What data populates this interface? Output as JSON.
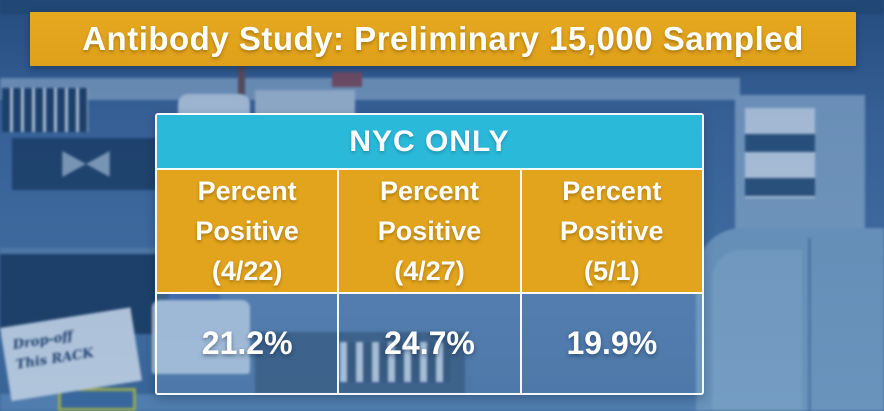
{
  "banner": {
    "title": "Antibody Study: Preliminary 15,000 Sampled"
  },
  "table": {
    "header": "NYC ONLY",
    "columns": [
      {
        "label": "Percent Positive",
        "date": "(4/22)",
        "value": "21.2%"
      },
      {
        "label": "Percent Positive",
        "date": "(4/27)",
        "value": "24.7%"
      },
      {
        "label": "Percent Positive",
        "date": "(5/1)",
        "value": "19.9%"
      }
    ]
  },
  "background": {
    "note_line1": "Drop-off",
    "note_line2": "This RACK"
  },
  "colors": {
    "gold": "#E2A41C",
    "cyan": "#2BB9DA",
    "overlay_blue": "#3A6397",
    "text": "#FFFFFF"
  },
  "chart_data": {
    "type": "table",
    "title": "Antibody Study: Preliminary 15,000 Sampled",
    "subtitle": "NYC ONLY",
    "categories": [
      "4/22",
      "4/27",
      "5/1"
    ],
    "series": [
      {
        "name": "Percent Positive",
        "values": [
          21.2,
          24.7,
          19.9
        ]
      }
    ],
    "unit": "%"
  }
}
